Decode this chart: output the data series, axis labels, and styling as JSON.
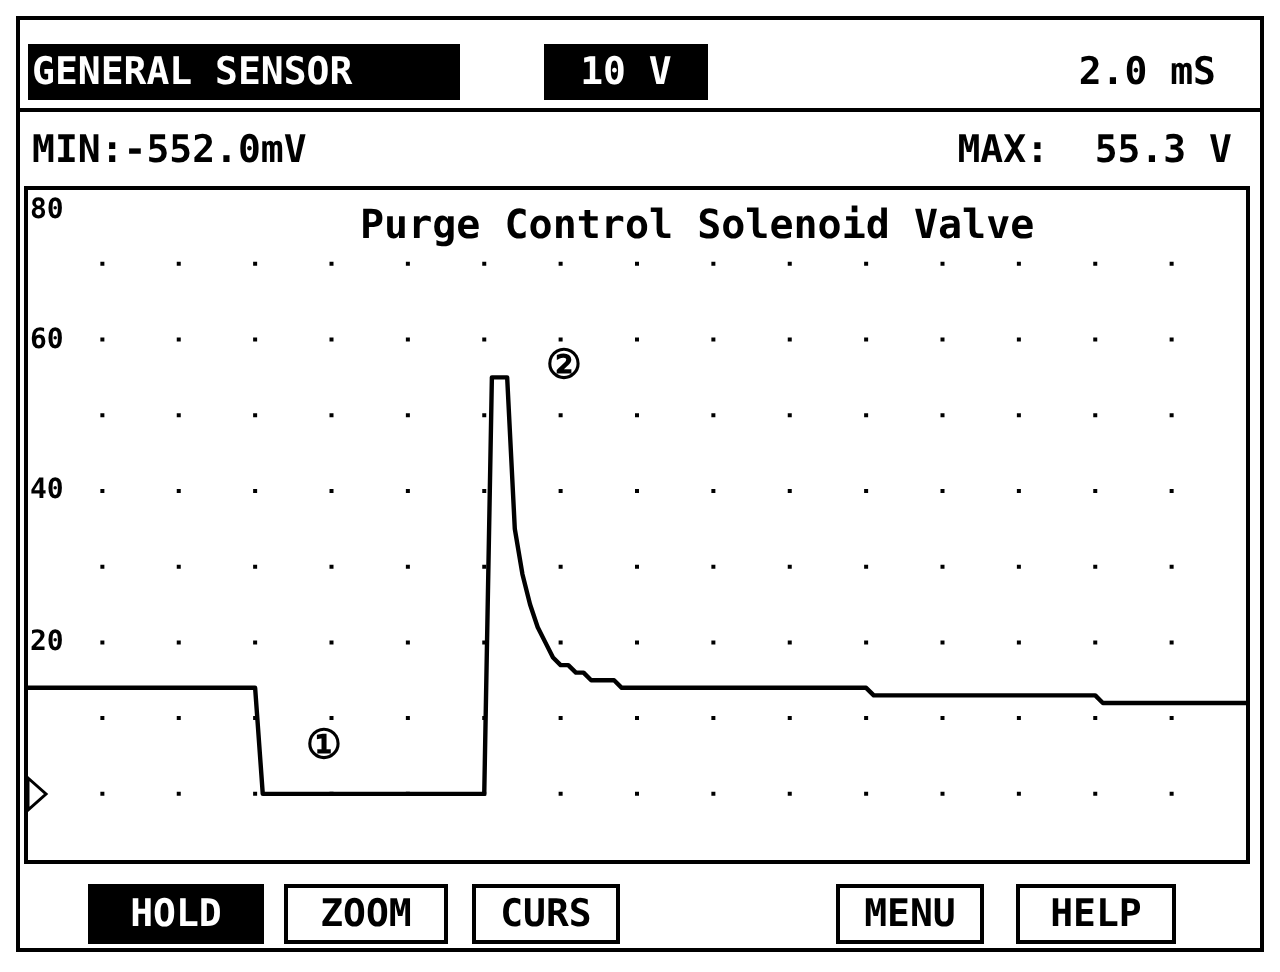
{
  "chart_data": {
    "type": "line",
    "title": "Purge Control Solenoid Valve",
    "categories": [
      null,
      null,
      null,
      null,
      null,
      null,
      null,
      null,
      null,
      null,
      null,
      null,
      null,
      null,
      null,
      null,
      null,
      null,
      null,
      null,
      null,
      null,
      null,
      null,
      null,
      null,
      null,
      null,
      null,
      null,
      null,
      null,
      null,
      null,
      null,
      null,
      null,
      null,
      null,
      null,
      null,
      null,
      null,
      null,
      null,
      null,
      null,
      null,
      null,
      null,
      null,
      null,
      null,
      null,
      null,
      null,
      null,
      null,
      null,
      null,
      null,
      null,
      null,
      null,
      null,
      null,
      null,
      null,
      null,
      null,
      null,
      null,
      null,
      null,
      null,
      null,
      null,
      null,
      null,
      null,
      null,
      null,
      null,
      null,
      null,
      null,
      null,
      null,
      null,
      null,
      null,
      null,
      null,
      null,
      null,
      null,
      null,
      null,
      null,
      null,
      null,
      null,
      null,
      null,
      null,
      null,
      null,
      null,
      null,
      null,
      null,
      null,
      null,
      null,
      null,
      null,
      null,
      null,
      null,
      null,
      null,
      null,
      null,
      null,
      null,
      null,
      null,
      null,
      null,
      null,
      null,
      null,
      null,
      null,
      null,
      null,
      null,
      null,
      null,
      null,
      null,
      null,
      null,
      null,
      null,
      null,
      null,
      null,
      null,
      null,
      null,
      null,
      null,
      null,
      null,
      null,
      null,
      null,
      null,
      null,
      null
    ],
    "series": [
      {
        "color": "#000000",
        "values": [
          14,
          14,
          14,
          14,
          14,
          14,
          14,
          14,
          14,
          14,
          14,
          14,
          14,
          14,
          14,
          14,
          14,
          14,
          14,
          14,
          14,
          14,
          14,
          14,
          14,
          14,
          14,
          14,
          14,
          14,
          14,
          0,
          0,
          0,
          0,
          0,
          0,
          0,
          0,
          0,
          0,
          0,
          0,
          0,
          0,
          0,
          0,
          0,
          0,
          0,
          0,
          0,
          0,
          0,
          0,
          0,
          0,
          0,
          0,
          0,
          0,
          55,
          55,
          55,
          35,
          29,
          25,
          22,
          20,
          18,
          17,
          17,
          16,
          16,
          15,
          15,
          15,
          15,
          14,
          14,
          14,
          14,
          14,
          14,
          14,
          14,
          14,
          14,
          14,
          14,
          14,
          14,
          14,
          14,
          14,
          14,
          14,
          14,
          14,
          14,
          14,
          14,
          14,
          14,
          14,
          14,
          14,
          14,
          14,
          14,
          14,
          13,
          13,
          13,
          13,
          13,
          13,
          13,
          13,
          13,
          13,
          13,
          13,
          13,
          13,
          13,
          13,
          13,
          13,
          13,
          13,
          13,
          13,
          13,
          13,
          13,
          13,
          13,
          13,
          13,
          13,
          12,
          12,
          12,
          12,
          12,
          12,
          12,
          12,
          12,
          12,
          12,
          12,
          12,
          12,
          12,
          12,
          12,
          12,
          12,
          12
        ]
      }
    ],
    "ylim": [
      -9,
      80
    ],
    "yticks": [
      {
        "value": 0,
        "label": null
      },
      {
        "value": 10,
        "label": null
      },
      20,
      {
        "value": 30,
        "label": null
      },
      40,
      {
        "value": 50,
        "label": null
      },
      60,
      {
        "value": 70,
        "label": null
      },
      80
    ],
    "grid": "y",
    "marker": "none",
    "line_style": "solid",
    "tick_labels": "y",
    "annotations": [
      "GENERAL SENSOR",
      "10 V",
      "2.0 mS",
      "MIN:-552.0mV",
      "MAX:  55.3 V",
      "①",
      "②",
      "HOLD",
      "ZOOM",
      "CURS",
      "MENU",
      "HELP"
    ]
  }
}
